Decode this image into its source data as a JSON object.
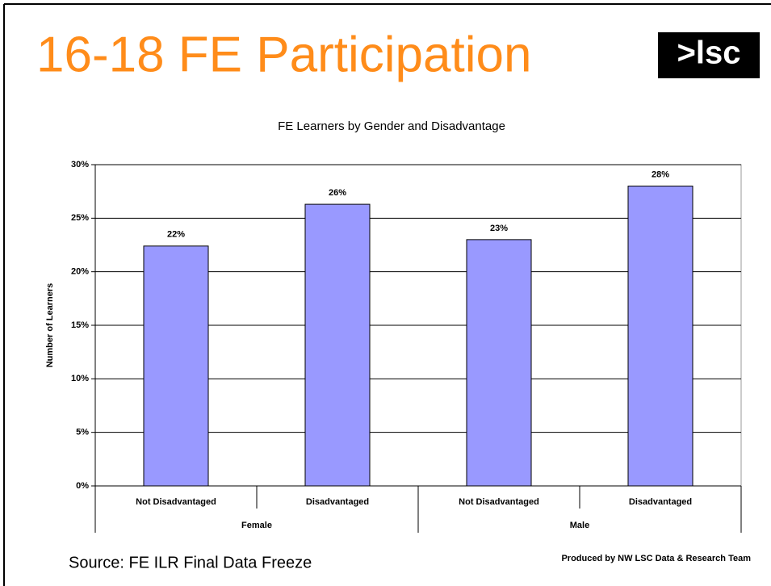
{
  "page": {
    "title": "16-18 FE Participation",
    "logo": ">lsc",
    "source": "Source: FE ILR Final Data Freeze",
    "credit": "Produced by NW LSC Data & Research Team"
  },
  "chart_data": {
    "type": "bar",
    "title": "FE Learners by Gender and Disadvantage",
    "y_label": "Number of Learners",
    "categories": [
      "Not Disadvantaged",
      "Disadvantaged",
      "Not Disadvantaged",
      "Disadvantaged"
    ],
    "groups": [
      "Female",
      "Male"
    ],
    "values": [
      22.4,
      26.3,
      23.0,
      28.0
    ],
    "value_labels": [
      "22%",
      "26%",
      "23%",
      "28%"
    ],
    "color": "#9999ff",
    "ylim": [
      0,
      30
    ],
    "yticks": [
      {
        "value": 0,
        "label": "0%"
      },
      {
        "value": 5,
        "label": "5%"
      },
      {
        "value": 10,
        "label": "10%"
      },
      {
        "value": 15,
        "label": "15%"
      },
      {
        "value": 20,
        "label": "20%"
      },
      {
        "value": 25,
        "label": "25%"
      },
      {
        "value": 30,
        "label": "30%"
      }
    ],
    "grid": true
  }
}
